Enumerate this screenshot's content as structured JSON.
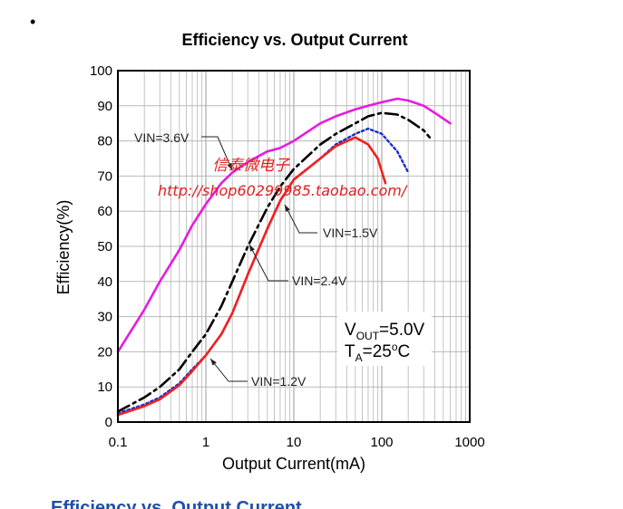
{
  "page": {
    "bullet": "•",
    "caption_partial": "Efficiency vs. Output Current"
  },
  "chart_data": {
    "type": "line",
    "title": "Efficiency vs. Output Current",
    "xlabel": "Output Current(mA)",
    "ylabel": "Efficiency(%)",
    "xscale": "log",
    "xlim": [
      0.1,
      1000
    ],
    "ylim": [
      0,
      100
    ],
    "x_ticks": [
      "0.1",
      "1",
      "10",
      "100",
      "1000"
    ],
    "y_ticks": [
      "0",
      "10",
      "20",
      "30",
      "40",
      "50",
      "60",
      "70",
      "80",
      "90",
      "100"
    ],
    "grid": true,
    "series": [
      {
        "name": "VIN=3.6V",
        "color": "#e81ae0",
        "style": "solid",
        "x": [
          0.1,
          0.15,
          0.2,
          0.3,
          0.5,
          0.7,
          1,
          1.5,
          2,
          3,
          5,
          7,
          10,
          20,
          30,
          50,
          70,
          100,
          150,
          200,
          300,
          400,
          600
        ],
        "y": [
          20,
          27,
          32,
          40,
          49,
          56,
          62,
          68,
          71,
          74,
          77,
          78,
          80,
          85,
          87,
          89,
          90,
          91,
          92,
          91.5,
          90,
          88,
          85
        ]
      },
      {
        "name": "VIN=2.4V",
        "color": "#000000",
        "style": "dashdot",
        "x": [
          0.1,
          0.2,
          0.3,
          0.5,
          0.7,
          1,
          1.5,
          2,
          3,
          5,
          7,
          10,
          20,
          30,
          50,
          70,
          100,
          150,
          200,
          300,
          350
        ],
        "y": [
          3,
          7,
          10,
          15,
          20,
          25,
          33,
          40,
          50,
          61,
          67,
          72,
          79,
          82,
          85,
          87,
          88,
          87.5,
          86,
          83,
          81
        ]
      },
      {
        "name": "VIN=1.5V",
        "color": "#1a2cc8",
        "style": "dotted",
        "x": [
          0.1,
          0.2,
          0.3,
          0.5,
          0.7,
          1,
          1.5,
          2,
          3,
          5,
          7,
          10,
          20,
          30,
          50,
          70,
          100,
          150,
          200
        ],
        "y": [
          2.5,
          5,
          7,
          11,
          15,
          19,
          25,
          31,
          42,
          55,
          63,
          69,
          75,
          79,
          82,
          83.5,
          82,
          77,
          71
        ]
      },
      {
        "name": "VIN=1.2V",
        "color": "#f02020",
        "style": "solid",
        "x": [
          0.1,
          0.2,
          0.3,
          0.5,
          0.7,
          1,
          1.5,
          2,
          3,
          5,
          7,
          10,
          20,
          30,
          50,
          70,
          90,
          110
        ],
        "y": [
          2,
          4.5,
          6.5,
          10.5,
          14.5,
          19,
          25,
          31,
          42,
          55,
          63,
          69,
          75,
          78.5,
          81,
          79,
          75,
          68
        ]
      }
    ],
    "annotations": [
      {
        "text": "VIN=3.6V",
        "series": "VIN=3.6V"
      },
      {
        "text": "VIN=1.5V",
        "series": "VIN=1.5V"
      },
      {
        "text": "VIN=2.4V",
        "series": "VIN=2.4V"
      },
      {
        "text": "VIN=1.2V",
        "series": "VIN=1.2V"
      }
    ],
    "conditions": {
      "line1": {
        "main": "V",
        "sub": "OUT",
        "rest": "=5.0V"
      },
      "line2": {
        "main": "T",
        "sub": "A",
        "rest": "=25",
        "sup": "o",
        "tail": "C"
      }
    },
    "watermark": {
      "line1": "信泰微电子",
      "line2": "http://shop60299985.taobao.com/"
    }
  }
}
